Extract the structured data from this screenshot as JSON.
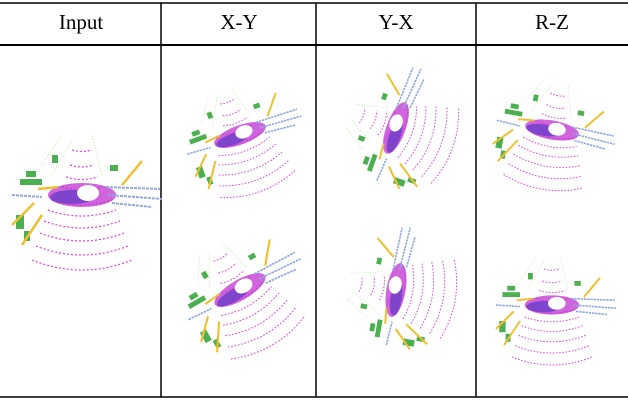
{
  "table": {
    "header": [
      "Input",
      "X-Y",
      "Y-X",
      "R-Z"
    ]
  }
}
